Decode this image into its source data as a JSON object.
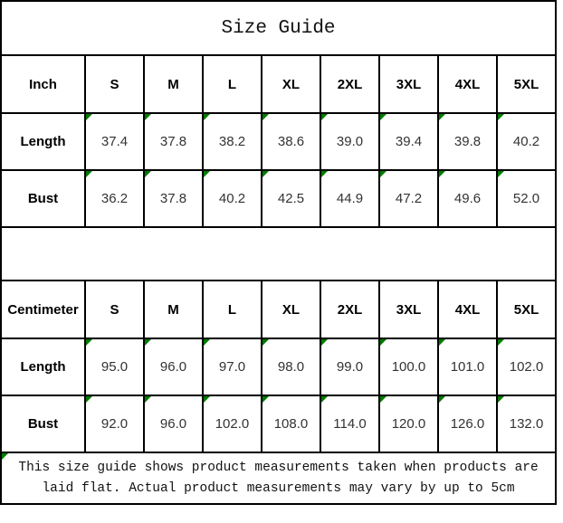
{
  "title": "Size Guide",
  "colors": {
    "marker_green": "#007a00",
    "border": "#000000",
    "value_text": "#333333",
    "header_text": "#000000",
    "background": "#ffffff"
  },
  "icons": {
    "cell_corner_marker": "green-triangle-top-left"
  },
  "tables": [
    {
      "unit": "Inch",
      "sizes": [
        "S",
        "M",
        "L",
        "XL",
        "2XL",
        "3XL",
        "4XL",
        "5XL"
      ],
      "rows": [
        {
          "label": "Length",
          "values": [
            "37.4",
            "37.8",
            "38.2",
            "38.6",
            "39.0",
            "39.4",
            "39.8",
            "40.2"
          ]
        },
        {
          "label": "Bust",
          "values": [
            "36.2",
            "37.8",
            "40.2",
            "42.5",
            "44.9",
            "47.2",
            "49.6",
            "52.0"
          ]
        }
      ]
    },
    {
      "unit": "Centimeter",
      "sizes": [
        "S",
        "M",
        "L",
        "XL",
        "2XL",
        "3XL",
        "4XL",
        "5XL"
      ],
      "rows": [
        {
          "label": "Length",
          "values": [
            "95.0",
            "96.0",
            "97.0",
            "98.0",
            "99.0",
            "100.0",
            "101.0",
            "102.0"
          ]
        },
        {
          "label": "Bust",
          "values": [
            "92.0",
            "96.0",
            "102.0",
            "108.0",
            "114.0",
            "120.0",
            "126.0",
            "132.0"
          ]
        }
      ]
    }
  ],
  "footer_note": "This size guide shows product measurements taken when products are laid flat. Actual product measurements may vary by up to 5cm"
}
